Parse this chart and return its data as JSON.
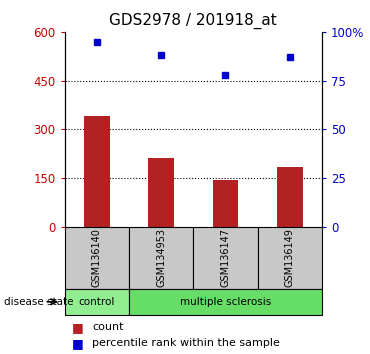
{
  "title": "GDS2978 / 201918_at",
  "samples": [
    "GSM136140",
    "GSM134953",
    "GSM136147",
    "GSM136149"
  ],
  "counts": [
    340,
    210,
    145,
    185
  ],
  "percentile_ranks": [
    95,
    88,
    78,
    87
  ],
  "left_ylim": [
    0,
    600
  ],
  "left_yticks": [
    0,
    150,
    300,
    450,
    600
  ],
  "right_ylim": [
    0,
    100
  ],
  "right_yticks": [
    0,
    25,
    50,
    75,
    100
  ],
  "right_yticklabels": [
    "0",
    "25",
    "50",
    "75",
    "100%"
  ],
  "bar_color": "#B22222",
  "dot_color": "#0000CC",
  "control_color": "#90EE90",
  "ms_color": "#66DD66",
  "sample_bg_color": "#C8C8C8",
  "left_tick_color": "#CC0000",
  "right_tick_color": "#0000CC",
  "dotted_lines": [
    150,
    300,
    450
  ],
  "legend_count_label": "count",
  "legend_pct_label": "percentile rank within the sample",
  "disease_label": "disease state",
  "control_label": "control",
  "ms_label": "multiple sclerosis"
}
